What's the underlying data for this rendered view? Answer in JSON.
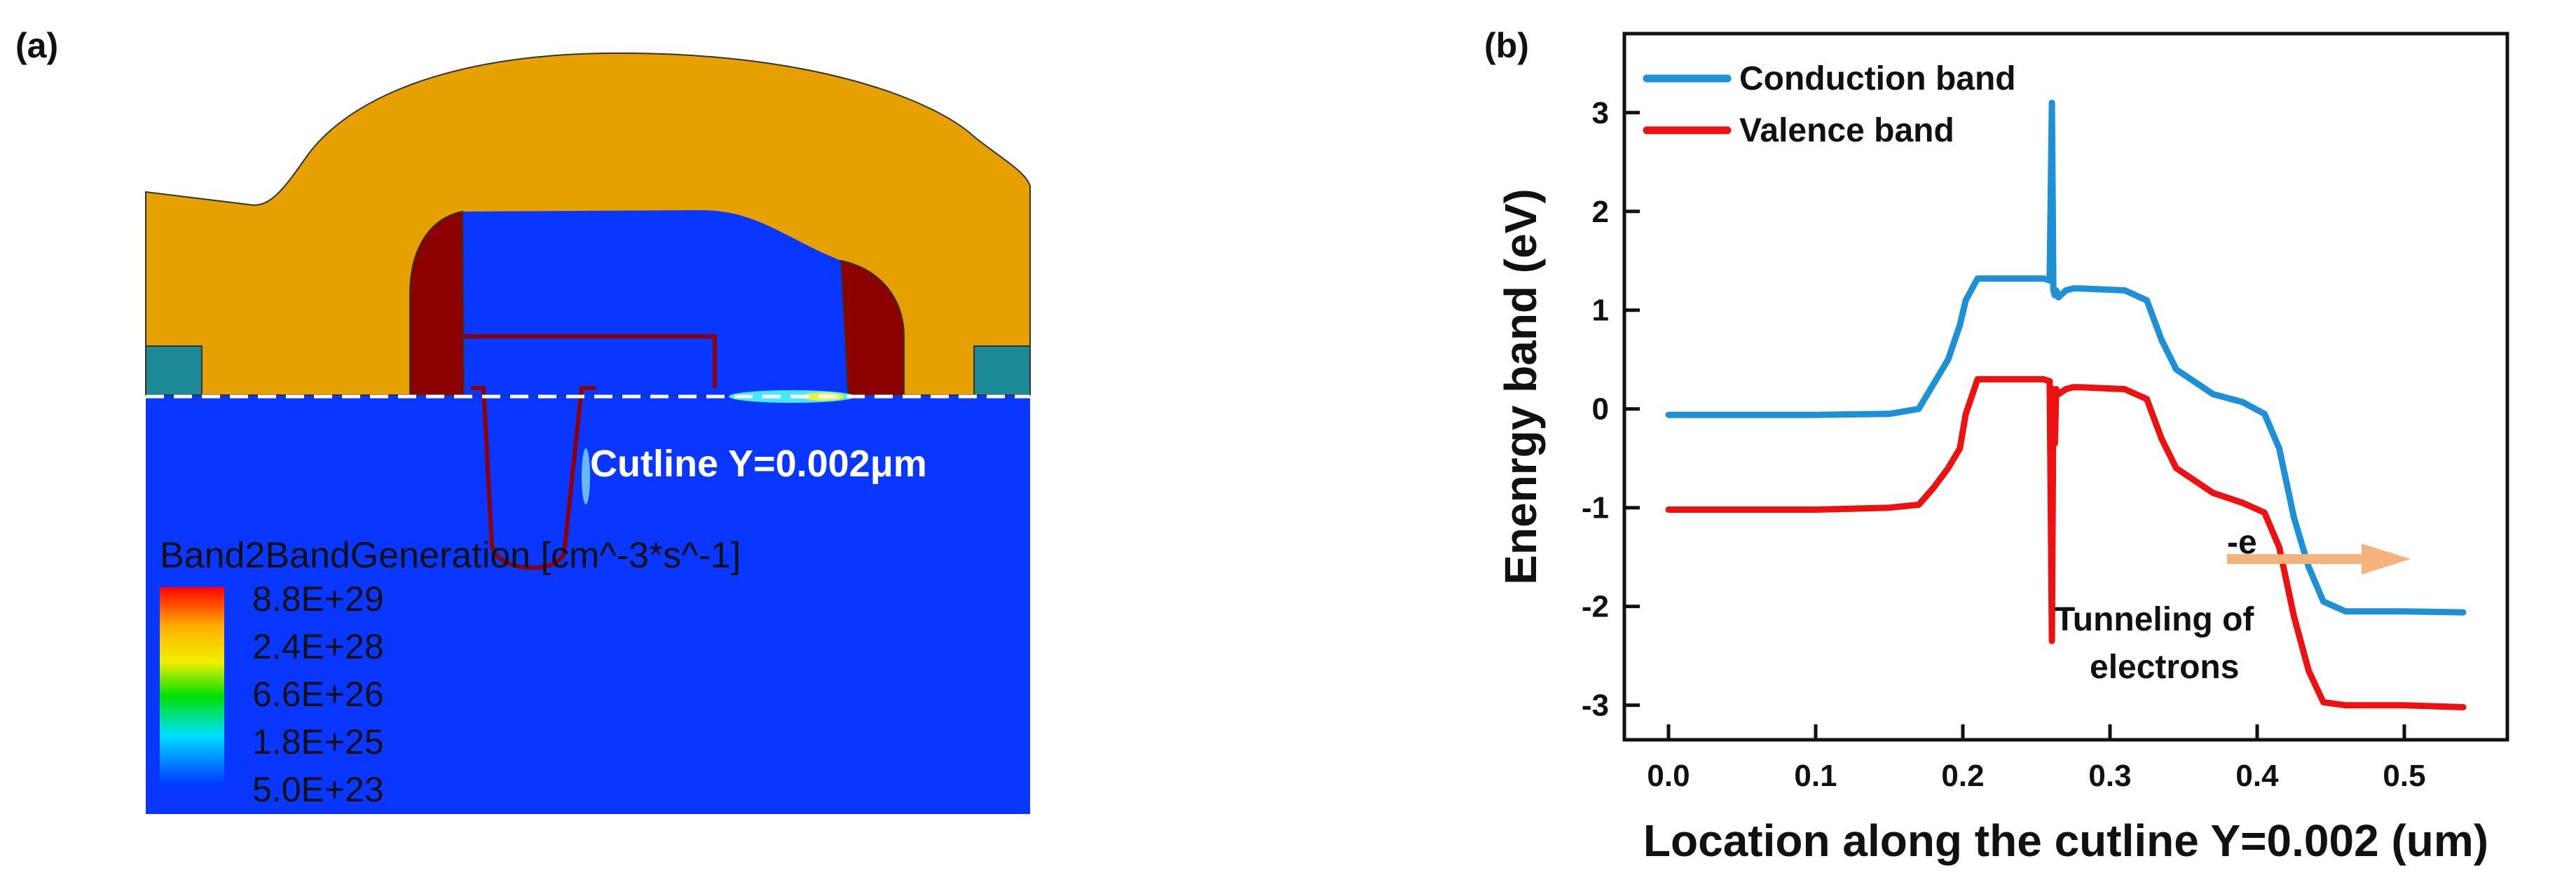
{
  "panel_a": {
    "label": "(a)",
    "cutline_label": "Cutline Y=0.002μm",
    "colorbar": {
      "title": "Band2BandGeneration [cm^-3*s^-1]",
      "labels": [
        "8.8E+29",
        "2.4E+28",
        "6.6E+26",
        "1.8E+25",
        "5.0E+23"
      ]
    },
    "colors": {
      "oxide": "#E6A000",
      "silicon": "#0A37FF",
      "spacer": "#8C0000",
      "isolation": "#1B8A96"
    }
  },
  "panel_b": {
    "label": "(b)",
    "annotation_arrow_label": "-e",
    "annotation_text_line1": "Tunneling of",
    "annotation_text_line2": "electrons",
    "arrow_color": "#F5B27A"
  },
  "chart_data": {
    "type": "line",
    "xlabel": "Location along the cutline Y=0.002 (um)",
    "ylabel": "Enenrgy band (eV)",
    "xlim": [
      -0.03,
      0.57
    ],
    "ylim": [
      -3.35,
      3.8
    ],
    "xticks": [
      "0.0",
      "0.1",
      "0.2",
      "0.3",
      "0.4",
      "0.5"
    ],
    "xtick_values": [
      0,
      0.1,
      0.2,
      0.3,
      0.4,
      0.5
    ],
    "yticks": [
      "-3",
      "-2",
      "-1",
      "0",
      "1",
      "2",
      "3"
    ],
    "ytick_values": [
      -3,
      -2,
      -1,
      0,
      1,
      2,
      3
    ],
    "legend_position": "top-left",
    "grid": false,
    "series": [
      {
        "name": "Conduction band",
        "color": "#1E90D6",
        "x": [
          0.0,
          0.1,
          0.15,
          0.17,
          0.18,
          0.19,
          0.198,
          0.202,
          0.21,
          0.255,
          0.259,
          0.2605,
          0.2615,
          0.2625,
          0.2635,
          0.265,
          0.27,
          0.275,
          0.28,
          0.31,
          0.325,
          0.335,
          0.345,
          0.37,
          0.39,
          0.405,
          0.415,
          0.425,
          0.435,
          0.445,
          0.46,
          0.5,
          0.54
        ],
        "y": [
          -0.06,
          -0.06,
          -0.05,
          0.0,
          0.25,
          0.5,
          0.85,
          1.1,
          1.32,
          1.32,
          1.3,
          3.1,
          1.2,
          1.15,
          1.2,
          1.13,
          1.2,
          1.22,
          1.22,
          1.2,
          1.1,
          0.7,
          0.4,
          0.15,
          0.07,
          -0.05,
          -0.4,
          -1.1,
          -1.6,
          -1.95,
          -2.05,
          -2.05,
          -2.06
        ]
      },
      {
        "name": "Valence band",
        "color": "#EE1111",
        "x": [
          0.0,
          0.1,
          0.15,
          0.17,
          0.18,
          0.19,
          0.198,
          0.202,
          0.21,
          0.255,
          0.259,
          0.2605,
          0.2615,
          0.2625,
          0.2635,
          0.265,
          0.27,
          0.275,
          0.28,
          0.31,
          0.325,
          0.335,
          0.345,
          0.37,
          0.39,
          0.405,
          0.415,
          0.425,
          0.435,
          0.445,
          0.46,
          0.5,
          0.54
        ],
        "y": [
          -1.02,
          -1.02,
          -1.0,
          -0.97,
          -0.8,
          -0.6,
          -0.4,
          -0.05,
          0.3,
          0.3,
          0.28,
          -2.35,
          0.2,
          -0.35,
          0.2,
          0.15,
          0.2,
          0.22,
          0.22,
          0.2,
          0.1,
          -0.3,
          -0.6,
          -0.85,
          -0.95,
          -1.05,
          -1.4,
          -2.1,
          -2.65,
          -2.97,
          -3.0,
          -3.0,
          -3.02
        ]
      }
    ]
  }
}
